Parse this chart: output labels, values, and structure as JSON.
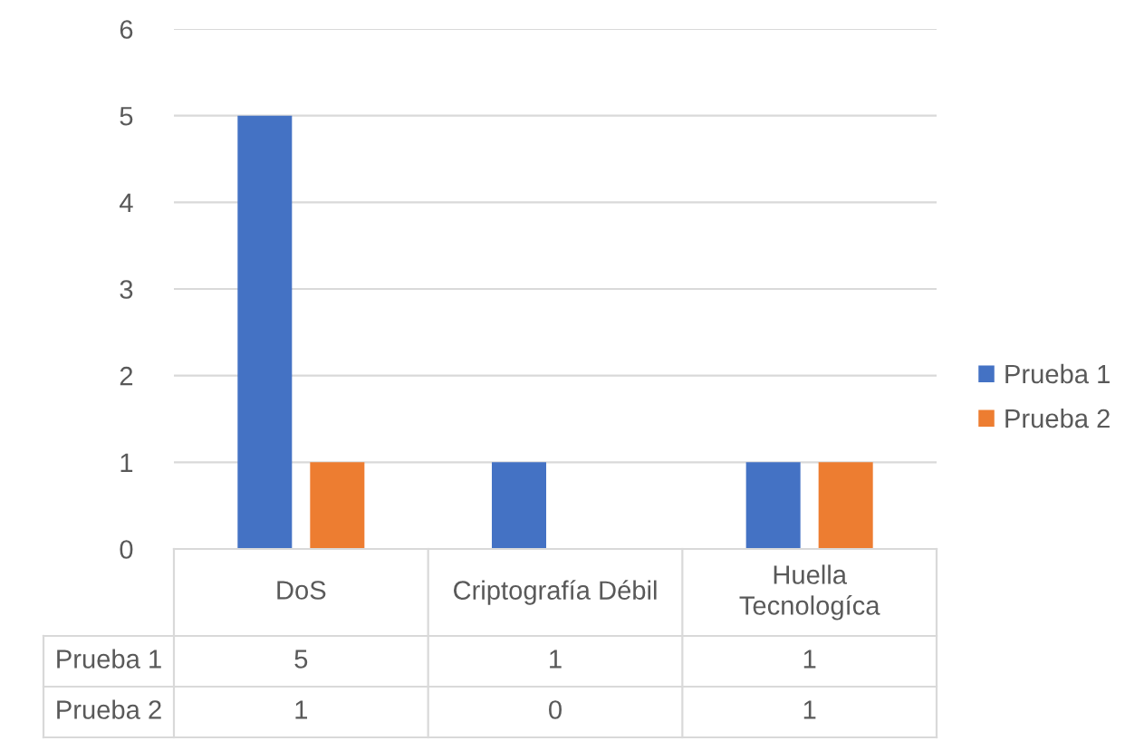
{
  "chart_data": {
    "type": "bar",
    "categories": [
      "DoS",
      "Criptografía Débil",
      "Huella Tecnologíca"
    ],
    "series": [
      {
        "name": "Prueba 1",
        "color": "#4472c4",
        "values": [
          5,
          1,
          1
        ]
      },
      {
        "name": "Prueba 2",
        "color": "#ed7d31",
        "values": [
          1,
          0,
          1
        ]
      }
    ],
    "ylim": [
      0,
      6
    ],
    "yticks": [
      0,
      1,
      2,
      3,
      4,
      5,
      6
    ],
    "grid": "y",
    "legend": "right",
    "data_labels": true
  }
}
